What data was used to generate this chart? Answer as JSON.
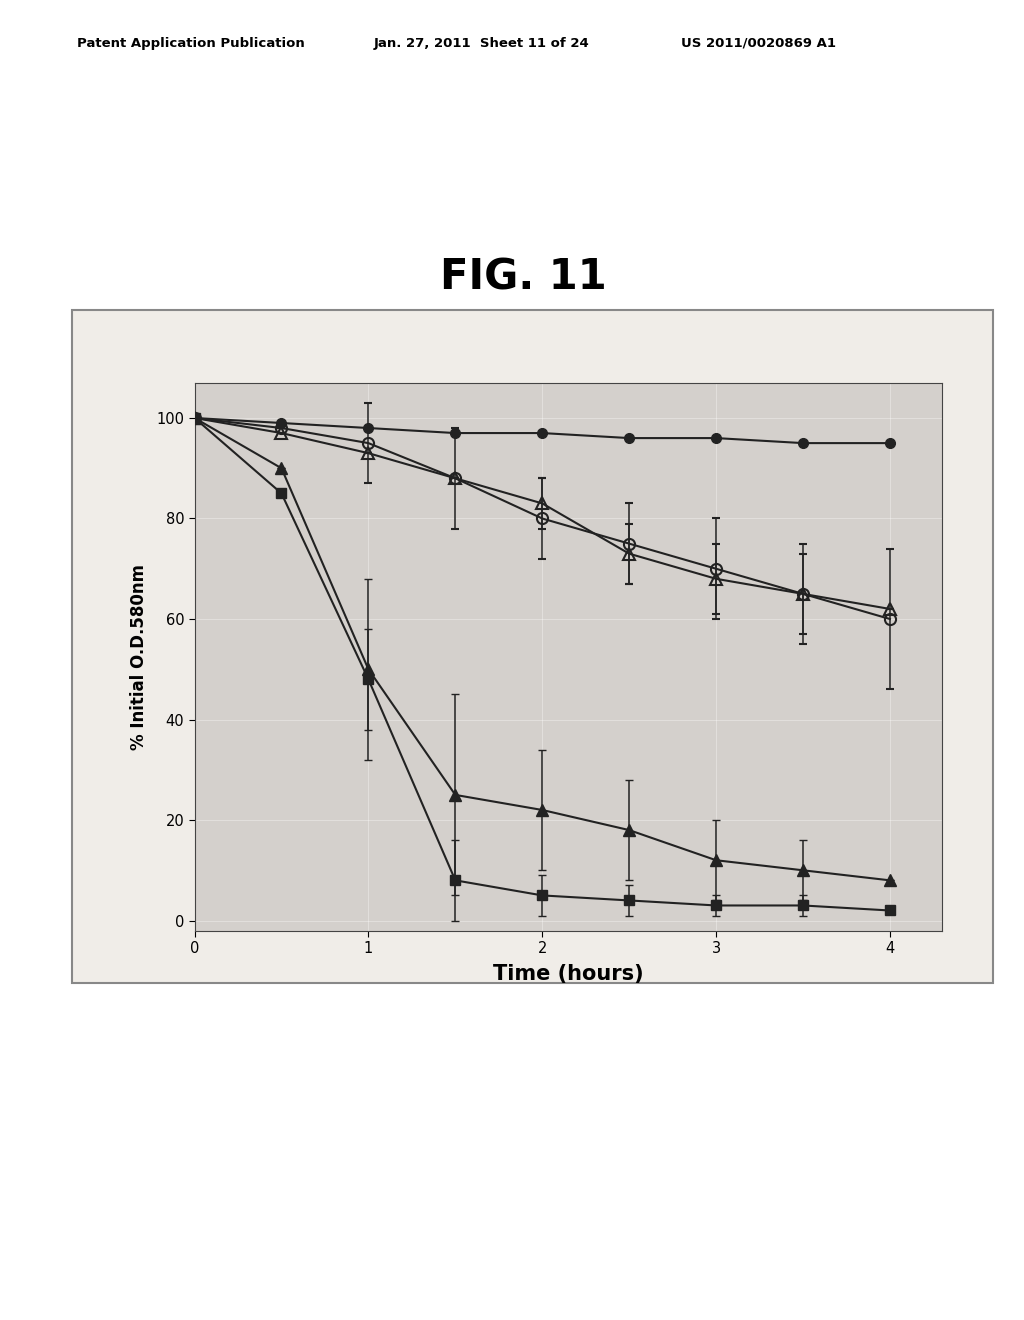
{
  "title": "FIG. 11",
  "xlabel": "Time (hours)",
  "ylabel": "% Initial O.D.580nm",
  "xlim": [
    0,
    4.3
  ],
  "ylim": [
    -2,
    107
  ],
  "xticks": [
    0,
    1,
    2,
    3,
    4
  ],
  "yticks": [
    0,
    20,
    40,
    60,
    80,
    100
  ],
  "header_left": "Patent Application Publication",
  "header_center": "Jan. 27, 2011  Sheet 11 of 24",
  "header_right": "US 2011/0020869 A1",
  "series": [
    {
      "name": "filled_circle",
      "marker": "o",
      "fillstyle": "full",
      "color": "#222222",
      "markersize": 7,
      "x": [
        0,
        0.5,
        1.0,
        1.5,
        2.0,
        2.5,
        3.0,
        3.5,
        4.0
      ],
      "y": [
        100,
        99,
        98,
        97,
        97,
        96,
        96,
        95,
        95
      ],
      "yerr": [
        0,
        0,
        0,
        0,
        0,
        0,
        0,
        0,
        0
      ]
    },
    {
      "name": "open_circle",
      "marker": "o",
      "fillstyle": "none",
      "color": "#222222",
      "markersize": 8,
      "x": [
        0,
        0.5,
        1.0,
        1.5,
        2.0,
        2.5,
        3.0,
        3.5,
        4.0
      ],
      "y": [
        100,
        98,
        95,
        88,
        80,
        75,
        70,
        65,
        60
      ],
      "yerr": [
        0,
        0,
        8,
        10,
        8,
        8,
        10,
        10,
        14
      ]
    },
    {
      "name": "open_triangle",
      "marker": "^",
      "fillstyle": "none",
      "color": "#222222",
      "markersize": 8,
      "x": [
        0,
        0.5,
        1.0,
        1.5,
        2.0,
        2.5,
        3.0,
        3.5,
        4.0
      ],
      "y": [
        100,
        97,
        93,
        88,
        83,
        73,
        68,
        65,
        62
      ],
      "yerr": [
        0,
        0,
        0,
        0,
        5,
        6,
        7,
        8,
        0
      ]
    },
    {
      "name": "filled_triangle",
      "marker": "^",
      "fillstyle": "full",
      "color": "#222222",
      "markersize": 8,
      "x": [
        0,
        0.5,
        1.0,
        1.5,
        2.0,
        2.5,
        3.0,
        3.5,
        4.0
      ],
      "y": [
        100,
        90,
        50,
        25,
        22,
        18,
        12,
        10,
        8
      ],
      "yerr": [
        0,
        0,
        18,
        20,
        12,
        10,
        8,
        6,
        0
      ]
    },
    {
      "name": "filled_square",
      "marker": "s",
      "fillstyle": "full",
      "color": "#222222",
      "markersize": 7,
      "x": [
        0,
        0.5,
        1.0,
        1.5,
        2.0,
        2.5,
        3.0,
        3.5,
        4.0
      ],
      "y": [
        100,
        85,
        48,
        8,
        5,
        4,
        3,
        3,
        2
      ],
      "yerr": [
        0,
        0,
        10,
        8,
        4,
        3,
        2,
        2,
        0
      ]
    }
  ],
  "plot_bg_color": "#d4d0cc",
  "fig_bg_color": "#f0ede8"
}
